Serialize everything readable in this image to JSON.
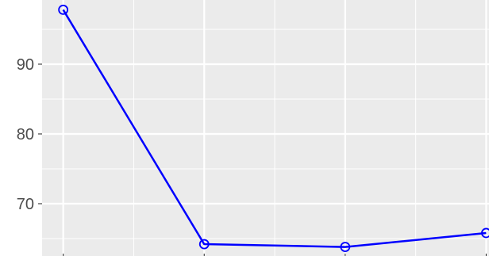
{
  "chart_data": {
    "type": "line",
    "x": [
      1,
      2,
      3,
      4
    ],
    "series": [
      {
        "values": [
          97.8,
          64.2,
          63.8,
          65.8
        ],
        "color": "#0000ff",
        "marker": "open-circle"
      }
    ],
    "x_ticks": [
      "",
      "",
      "",
      ""
    ],
    "y_ticks": [
      "70",
      "80",
      "90"
    ],
    "y_tick_values": [
      70,
      80,
      90
    ],
    "ylim": [
      62.5,
      99.2
    ],
    "xlim": [
      0.85,
      4.02
    ],
    "grid": true,
    "panel_background": "#ebebeb",
    "grid_color": "#ffffff",
    "title": "",
    "xlabel": "",
    "ylabel": ""
  }
}
